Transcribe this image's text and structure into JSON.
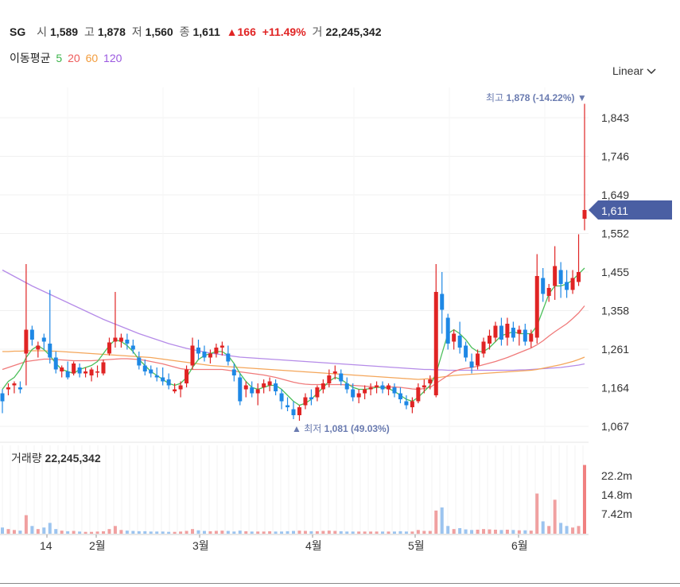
{
  "header": {
    "symbol": "SG",
    "open_label": "시",
    "open": "1,589",
    "high_label": "고",
    "high": "1,878",
    "low_label": "저",
    "low": "1,560",
    "close_label": "종",
    "close": "1,611",
    "change": "▲166",
    "change_pct": "+11.49%",
    "volume_label": "거",
    "volume": "22,245,342"
  },
  "moving_average": {
    "label": "이동평균",
    "periods": [
      {
        "value": "5",
        "color": "#3cb44b"
      },
      {
        "value": "20",
        "color": "#ee5a5a"
      },
      {
        "value": "60",
        "color": "#f39c3c"
      },
      {
        "value": "120",
        "color": "#9b59e0"
      }
    ]
  },
  "scale_selector": {
    "label": "Linear",
    "icon": "chevron-down-icon"
  },
  "colors": {
    "up": "#e02424",
    "down": "#1e88e5",
    "current_tag": "#4a5fa3",
    "annotation": "#6a7bb0"
  },
  "price_axis": {
    "ticks": [
      "1,843",
      "1,746",
      "1,649",
      "1,552",
      "1,455",
      "1,358",
      "1,261",
      "1,164",
      "1,067"
    ]
  },
  "current_price_tag": "1,611",
  "annotations": {
    "high": {
      "label": "최고",
      "value": "1,878 (-14.22%)",
      "marker": "▼"
    },
    "low": {
      "label": "최저",
      "value": "1,081 (49.03%)",
      "marker": "▲"
    }
  },
  "volume_panel": {
    "label": "거래량",
    "value": "22,245,342",
    "ticks": [
      "22.2m",
      "14.8m",
      "7.42m"
    ]
  },
  "time_axis": {
    "labels": [
      "14",
      "2월",
      "3월",
      "4월",
      "5월",
      "6월"
    ]
  },
  "chart_data": {
    "type": "candlestick",
    "price_ylim": [
      1020,
      1900
    ],
    "candles_approx": [
      [
        1150,
        1160,
        1100,
        1130
      ],
      [
        1160,
        1175,
        1145,
        1165
      ],
      [
        1170,
        1180,
        1150,
        1175
      ],
      [
        1165,
        1180,
        1150,
        1160
      ],
      [
        1250,
        1475,
        1170,
        1310
      ],
      [
        1310,
        1320,
        1270,
        1285
      ],
      [
        1260,
        1280,
        1240,
        1270
      ],
      [
        1290,
        1300,
        1260,
        1280
      ],
      [
        1275,
        1410,
        1225,
        1240
      ],
      [
        1240,
        1255,
        1200,
        1210
      ],
      [
        1205,
        1220,
        1190,
        1215
      ],
      [
        1205,
        1230,
        1185,
        1190
      ],
      [
        1200,
        1230,
        1195,
        1225
      ],
      [
        1215,
        1225,
        1190,
        1200
      ],
      [
        1200,
        1215,
        1190,
        1205
      ],
      [
        1195,
        1215,
        1180,
        1210
      ],
      [
        1205,
        1220,
        1190,
        1205
      ],
      [
        1200,
        1235,
        1195,
        1228
      ],
      [
        1250,
        1290,
        1245,
        1278
      ],
      [
        1280,
        1405,
        1265,
        1290
      ],
      [
        1280,
        1300,
        1265,
        1290
      ],
      [
        1285,
        1300,
        1260,
        1275
      ],
      [
        1270,
        1285,
        1250,
        1260
      ],
      [
        1240,
        1255,
        1210,
        1220
      ],
      [
        1220,
        1235,
        1195,
        1205
      ],
      [
        1210,
        1220,
        1190,
        1200
      ],
      [
        1195,
        1215,
        1180,
        1190
      ],
      [
        1190,
        1215,
        1170,
        1180
      ],
      [
        1185,
        1200,
        1160,
        1170
      ],
      [
        1155,
        1175,
        1150,
        1160
      ],
      [
        1160,
        1180,
        1140,
        1170
      ],
      [
        1175,
        1220,
        1165,
        1210
      ],
      [
        1220,
        1290,
        1210,
        1270
      ],
      [
        1265,
        1285,
        1235,
        1250
      ],
      [
        1255,
        1270,
        1230,
        1240
      ],
      [
        1240,
        1260,
        1225,
        1250
      ],
      [
        1250,
        1275,
        1240,
        1265
      ],
      [
        1265,
        1280,
        1245,
        1270
      ],
      [
        1250,
        1270,
        1220,
        1230
      ],
      [
        1210,
        1225,
        1180,
        1195
      ],
      [
        1190,
        1200,
        1120,
        1130
      ],
      [
        1160,
        1180,
        1140,
        1170
      ],
      [
        1165,
        1180,
        1140,
        1150
      ],
      [
        1150,
        1175,
        1120,
        1160
      ],
      [
        1165,
        1185,
        1150,
        1175
      ],
      [
        1170,
        1190,
        1155,
        1180
      ],
      [
        1175,
        1185,
        1145,
        1155
      ],
      [
        1150,
        1160,
        1110,
        1130
      ],
      [
        1120,
        1140,
        1105,
        1115
      ],
      [
        1110,
        1130,
        1085,
        1095
      ],
      [
        1095,
        1120,
        1081,
        1115
      ],
      [
        1120,
        1150,
        1110,
        1140
      ],
      [
        1140,
        1160,
        1120,
        1135
      ],
      [
        1140,
        1170,
        1130,
        1165
      ],
      [
        1160,
        1185,
        1150,
        1175
      ],
      [
        1175,
        1210,
        1165,
        1195
      ],
      [
        1200,
        1220,
        1185,
        1205
      ],
      [
        1200,
        1210,
        1170,
        1180
      ],
      [
        1175,
        1190,
        1150,
        1160
      ],
      [
        1160,
        1175,
        1130,
        1140
      ],
      [
        1140,
        1160,
        1125,
        1150
      ],
      [
        1150,
        1170,
        1135,
        1160
      ],
      [
        1160,
        1175,
        1145,
        1165
      ],
      [
        1165,
        1180,
        1150,
        1170
      ],
      [
        1170,
        1180,
        1150,
        1160
      ],
      [
        1160,
        1175,
        1145,
        1170
      ],
      [
        1165,
        1175,
        1140,
        1150
      ],
      [
        1150,
        1165,
        1125,
        1135
      ],
      [
        1130,
        1145,
        1110,
        1120
      ],
      [
        1115,
        1140,
        1100,
        1130
      ],
      [
        1130,
        1175,
        1125,
        1165
      ],
      [
        1165,
        1185,
        1150,
        1170
      ],
      [
        1175,
        1195,
        1160,
        1185
      ],
      [
        1145,
        1475,
        1140,
        1405
      ],
      [
        1400,
        1455,
        1300,
        1360
      ],
      [
        1340,
        1350,
        1260,
        1275
      ],
      [
        1280,
        1310,
        1260,
        1300
      ],
      [
        1295,
        1330,
        1250,
        1265
      ],
      [
        1270,
        1280,
        1230,
        1240
      ],
      [
        1230,
        1250,
        1200,
        1215
      ],
      [
        1220,
        1260,
        1210,
        1250
      ],
      [
        1250,
        1290,
        1240,
        1280
      ],
      [
        1275,
        1310,
        1260,
        1295
      ],
      [
        1290,
        1330,
        1280,
        1320
      ],
      [
        1320,
        1340,
        1270,
        1285
      ],
      [
        1290,
        1340,
        1270,
        1325
      ],
      [
        1315,
        1330,
        1280,
        1290
      ],
      [
        1300,
        1320,
        1270,
        1310
      ],
      [
        1310,
        1325,
        1270,
        1280
      ],
      [
        1280,
        1310,
        1265,
        1300
      ],
      [
        1290,
        1500,
        1275,
        1445
      ],
      [
        1440,
        1465,
        1380,
        1400
      ],
      [
        1395,
        1425,
        1380,
        1415
      ],
      [
        1420,
        1520,
        1385,
        1470
      ],
      [
        1460,
        1480,
        1390,
        1425
      ],
      [
        1430,
        1460,
        1390,
        1410
      ],
      [
        1410,
        1460,
        1400,
        1440
      ],
      [
        1430,
        1550,
        1420,
        1455
      ],
      [
        1589,
        1878,
        1560,
        1611
      ]
    ],
    "ma5_approx": [
      1160,
      1180,
      1190,
      1210,
      1240,
      1260,
      1270,
      1260,
      1245,
      1225,
      1210,
      1205,
      1200,
      1210,
      1215,
      1220,
      1230,
      1250,
      1270,
      1285,
      1280,
      1270,
      1255,
      1235,
      1220,
      1205,
      1195,
      1185,
      1175,
      1170,
      1175,
      1190,
      1215,
      1235,
      1245,
      1250,
      1255,
      1255,
      1245,
      1225,
      1200,
      1180,
      1165,
      1160,
      1165,
      1170,
      1170,
      1160,
      1145,
      1130,
      1120,
      1125,
      1135,
      1150,
      1165,
      1180,
      1190,
      1185,
      1175,
      1165,
      1160,
      1160,
      1162,
      1165,
      1165,
      1162,
      1155,
      1145,
      1135,
      1130,
      1140,
      1155,
      1170,
      1200,
      1250,
      1300,
      1310,
      1300,
      1285,
      1265,
      1255,
      1255,
      1265,
      1280,
      1295,
      1300,
      1305,
      1300,
      1300,
      1300,
      1320,
      1360,
      1400,
      1420,
      1420,
      1425,
      1435,
      1450,
      1465
    ],
    "ma20_approx": [
      1210,
      1215,
      1220,
      1225,
      1230,
      1232,
      1234,
      1236,
      1236,
      1235,
      1234,
      1233,
      1232,
      1232,
      1232,
      1232,
      1233,
      1234,
      1235,
      1236,
      1237,
      1237,
      1236,
      1235,
      1233,
      1230,
      1227,
      1224,
      1220,
      1216,
      1212,
      1210,
      1210,
      1210,
      1210,
      1210,
      1210,
      1210,
      1208,
      1206,
      1204,
      1202,
      1200,
      1198,
      1196,
      1193,
      1190,
      1186,
      1182,
      1178,
      1175,
      1173,
      1172,
      1172,
      1172,
      1172,
      1172,
      1172,
      1171,
      1170,
      1169,
      1168,
      1167,
      1166,
      1166,
      1166,
      1166,
      1165,
      1163,
      1161,
      1160,
      1162,
      1165,
      1175,
      1185,
      1195,
      1205,
      1210,
      1213,
      1215,
      1218,
      1222,
      1226,
      1230,
      1235,
      1240,
      1246,
      1252,
      1258,
      1264,
      1272,
      1282,
      1294,
      1305,
      1315,
      1325,
      1338,
      1352,
      1370
    ],
    "ma60_approx": [
      1255,
      1255,
      1256,
      1256,
      1257,
      1257,
      1257,
      1257,
      1256,
      1256,
      1255,
      1254,
      1253,
      1252,
      1251,
      1250,
      1249,
      1248,
      1247,
      1246,
      1245,
      1244,
      1243,
      1242,
      1241,
      1240,
      1238,
      1236,
      1234,
      1232,
      1230,
      1228,
      1226,
      1224,
      1222,
      1220,
      1219,
      1218,
      1217,
      1216,
      1215,
      1214,
      1213,
      1212,
      1211,
      1210,
      1209,
      1208,
      1207,
      1206,
      1205,
      1204,
      1203,
      1202,
      1201,
      1200,
      1199,
      1198,
      1197,
      1196,
      1195,
      1194,
      1193,
      1192,
      1191,
      1190,
      1189,
      1188,
      1187,
      1186,
      1185,
      1186,
      1187,
      1189,
      1191,
      1193,
      1195,
      1196,
      1197,
      1198,
      1199,
      1200,
      1201,
      1202,
      1203,
      1204,
      1205,
      1206,
      1207,
      1208,
      1210,
      1213,
      1216,
      1219,
      1222,
      1226,
      1230,
      1235,
      1241
    ],
    "ma120_approx": [
      1460,
      1452,
      1444,
      1436,
      1428,
      1420,
      1413,
      1406,
      1399,
      1392,
      1385,
      1378,
      1371,
      1364,
      1357,
      1350,
      1343,
      1336,
      1330,
      1324,
      1318,
      1312,
      1306,
      1300,
      1295,
      1290,
      1285,
      1280,
      1275,
      1271,
      1267,
      1263,
      1260,
      1257,
      1254,
      1251,
      1249,
      1247,
      1245,
      1243,
      1241,
      1240,
      1239,
      1238,
      1237,
      1236,
      1235,
      1234,
      1233,
      1232,
      1231,
      1230,
      1229,
      1228,
      1227,
      1226,
      1225,
      1224,
      1223,
      1222,
      1221,
      1220,
      1219,
      1218,
      1217,
      1216,
      1215,
      1214,
      1213,
      1212,
      1211,
      1210,
      1210,
      1209,
      1209,
      1208,
      1208,
      1208,
      1208,
      1208,
      1208,
      1208,
      1208,
      1208,
      1208,
      1208,
      1208,
      1209,
      1209,
      1210,
      1211,
      1212,
      1213,
      1214,
      1215,
      1217,
      1219,
      1221,
      1224
    ],
    "volume_ylim": [
      0,
      26000000
    ],
    "volume_approx": [
      2000000,
      1500000,
      1200000,
      1000000,
      6000000,
      2500000,
      1500000,
      2000000,
      3500000,
      1500000,
      1000000,
      800000,
      900000,
      700000,
      600000,
      600000,
      700000,
      800000,
      1500000,
      2500000,
      1200000,
      1000000,
      900000,
      800000,
      800000,
      700000,
      700000,
      700000,
      600000,
      600000,
      700000,
      900000,
      1500000,
      1100000,
      900000,
      800000,
      900000,
      1000000,
      900000,
      700000,
      1000000,
      800000,
      700000,
      700000,
      700000,
      800000,
      700000,
      700000,
      800000,
      900000,
      1000000,
      900000,
      800000,
      800000,
      900000,
      1000000,
      900000,
      800000,
      700000,
      700000,
      700000,
      700000,
      700000,
      700000,
      700000,
      700000,
      700000,
      800000,
      700000,
      700000,
      1200000,
      900000,
      900000,
      7500000,
      8500000,
      2500000,
      1500000,
      1800000,
      1400000,
      1200000,
      1300000,
      1500000,
      1400000,
      1300000,
      1200000,
      1300000,
      1200000,
      1100000,
      1100000,
      1000000,
      13000000,
      4000000,
      2500000,
      11000000,
      3500000,
      2500000,
      2000000,
      2500000,
      22245342
    ]
  }
}
